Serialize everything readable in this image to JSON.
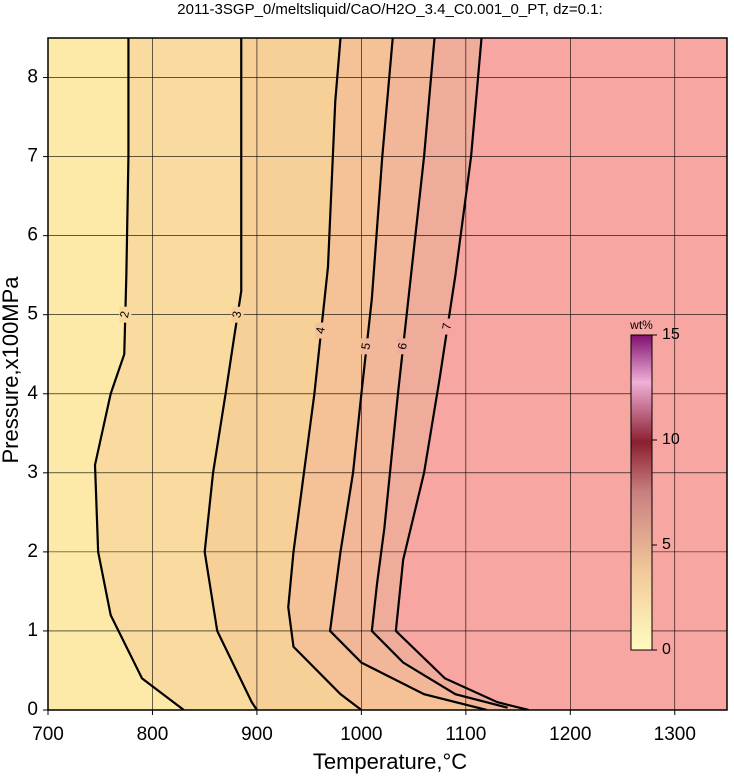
{
  "chart_data": {
    "type": "contour",
    "title": "2011-3SGP_0/meltsliquid/CaO/H2O_3.4_C0.001_0_PT, dz=0.1:",
    "xlabel": "Temperature,°C",
    "ylabel": "Pressure,x100MPa",
    "xlim": [
      700,
      1350
    ],
    "ylim": [
      0,
      8.5
    ],
    "xticks": [
      700,
      800,
      900,
      1000,
      1100,
      1200,
      1300
    ],
    "yticks": [
      0,
      1,
      2,
      3,
      4,
      5,
      6,
      7,
      8
    ],
    "grid": true,
    "background": "#fde9a8",
    "contours": [
      {
        "level": 2,
        "color": "#fadb9f",
        "x": [
          777,
          777,
          775,
          773,
          760,
          745,
          748,
          760,
          790,
          830
        ],
        "y": [
          8.5,
          7,
          5.5,
          4.5,
          4,
          3.1,
          2,
          1.2,
          0.4,
          0
        ]
      },
      {
        "level": 3,
        "color": "#f7d098",
        "x": [
          885,
          885,
          885,
          878,
          870,
          858,
          850,
          862,
          895,
          900
        ],
        "y": [
          8.5,
          6,
          5.3,
          4.7,
          4,
          3,
          2,
          1,
          0.1,
          0
        ]
      },
      {
        "level": 4,
        "color": "#f4c296",
        "x": [
          980,
          975,
          968,
          955,
          945,
          935,
          930,
          935,
          980,
          1000
        ],
        "y": [
          8.5,
          7.7,
          5.6,
          4,
          3,
          2,
          1.3,
          0.8,
          0.2,
          0
        ]
      },
      {
        "level": 5,
        "color": "#f2b698",
        "x": [
          1030,
          1020,
          1010,
          1000,
          992,
          980,
          970,
          1000,
          1060,
          1120
        ],
        "y": [
          8.5,
          7,
          5.2,
          4,
          3,
          2,
          1,
          0.6,
          0.2,
          0
        ]
      },
      {
        "level": 6,
        "color": "#efac9b",
        "x": [
          1070,
          1060,
          1045,
          1035,
          1022,
          1015,
          1010,
          1040,
          1090,
          1140
        ],
        "y": [
          8.5,
          7,
          5.2,
          4,
          2.3,
          1.6,
          1,
          0.6,
          0.2,
          0.03
        ]
      },
      {
        "level": 7,
        "color": "#f8a6a2",
        "x": [
          1115,
          1105,
          1090,
          1075,
          1060,
          1040,
          1033,
          1080,
          1130,
          1160
        ],
        "y": [
          8.5,
          7,
          5.5,
          4.2,
          3,
          1.9,
          1,
          0.4,
          0.1,
          0
        ]
      }
    ],
    "colorbar": {
      "label": "wt%",
      "lim": [
        0,
        15
      ],
      "ticks": [
        0,
        5,
        10,
        15
      ]
    }
  }
}
